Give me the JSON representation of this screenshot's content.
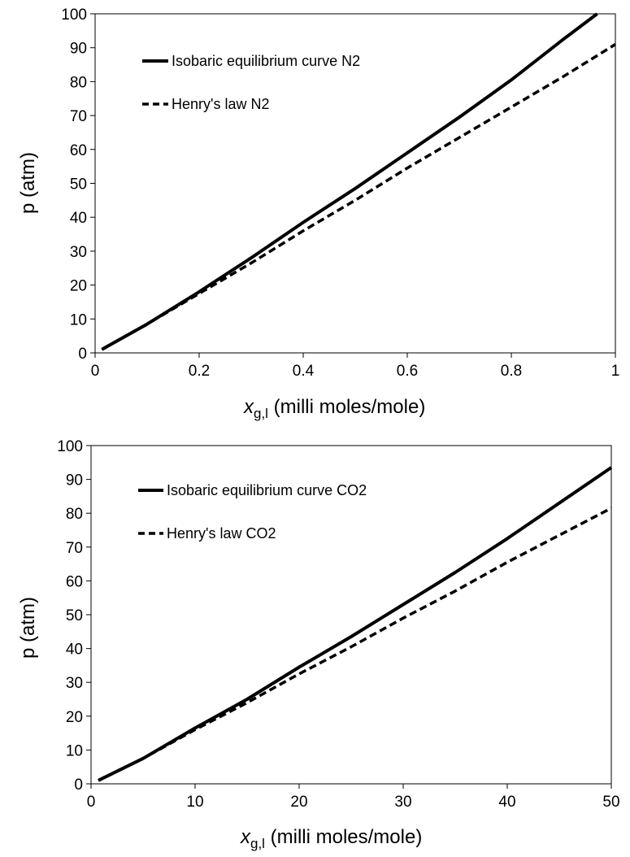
{
  "chart_data": [
    {
      "type": "line",
      "title": "",
      "xlabel": {
        "symbol": "x",
        "subscript": "g,l",
        "rest": " (milli moles/mole)"
      },
      "ylabel": "p (atm)",
      "xlim": [
        0,
        1
      ],
      "ylim": [
        0,
        100
      ],
      "xticks": [
        0,
        0.2,
        0.4,
        0.6,
        0.8,
        1
      ],
      "xtick_labels": [
        "0",
        "0.2",
        "0.4",
        "0.6",
        "0.8",
        "1"
      ],
      "yticks": [
        0,
        10,
        20,
        30,
        40,
        50,
        60,
        70,
        80,
        90,
        100
      ],
      "ytick_labels": [
        "0",
        "10",
        "20",
        "30",
        "40",
        "50",
        "60",
        "70",
        "80",
        "90",
        "100"
      ],
      "grid": false,
      "legend_position": "top-left",
      "series": [
        {
          "name": "Isobaric equilibrium curve N2",
          "style": "solid",
          "x": [
            0.013,
            0.1,
            0.2,
            0.3,
            0.4,
            0.5,
            0.6,
            0.7,
            0.8,
            0.9,
            0.965
          ],
          "y": [
            1,
            8.5,
            18,
            28,
            38.5,
            48.5,
            59,
            69.5,
            80.5,
            92.5,
            100
          ]
        },
        {
          "name": "Henry's law N2",
          "style": "dashed",
          "x": [
            0.013,
            0.1,
            0.2,
            0.3,
            0.4,
            0.5,
            0.6,
            0.7,
            0.8,
            0.9,
            1.0
          ],
          "y": [
            1,
            8.5,
            17.5,
            26.5,
            36,
            45,
            54.5,
            63.5,
            72.5,
            81.5,
            91
          ]
        }
      ]
    },
    {
      "type": "line",
      "title": "",
      "xlabel": {
        "symbol": "x",
        "subscript": "g,l",
        "rest": " (milli moles/mole)"
      },
      "ylabel": "p (atm)",
      "xlim": [
        0,
        50
      ],
      "ylim": [
        0,
        100
      ],
      "xticks": [
        0,
        10,
        20,
        30,
        40,
        50
      ],
      "xtick_labels": [
        "0",
        "10",
        "20",
        "30",
        "40",
        "50"
      ],
      "yticks": [
        0,
        10,
        20,
        30,
        40,
        50,
        60,
        70,
        80,
        90,
        100
      ],
      "ytick_labels": [
        "0",
        "10",
        "20",
        "30",
        "40",
        "50",
        "60",
        "70",
        "80",
        "90",
        "100"
      ],
      "grid": false,
      "legend_position": "top-left",
      "series": [
        {
          "name": "Isobaric equilibrium curve CO2",
          "style": "solid",
          "x": [
            0.7,
            5,
            10,
            15,
            20,
            25,
            30,
            35,
            40,
            45,
            50
          ],
          "y": [
            1,
            7.5,
            16.5,
            25,
            34.5,
            43.5,
            53,
            62.5,
            72.5,
            83,
            93.5
          ]
        },
        {
          "name": "Henry's law CO2",
          "style": "dashed",
          "x": [
            0.7,
            5,
            10,
            15,
            20,
            25,
            30,
            35,
            40,
            45,
            50
          ],
          "y": [
            1,
            7.5,
            16,
            24,
            32.5,
            40.5,
            49,
            57,
            65.5,
            73.5,
            81.5
          ]
        }
      ]
    }
  ]
}
